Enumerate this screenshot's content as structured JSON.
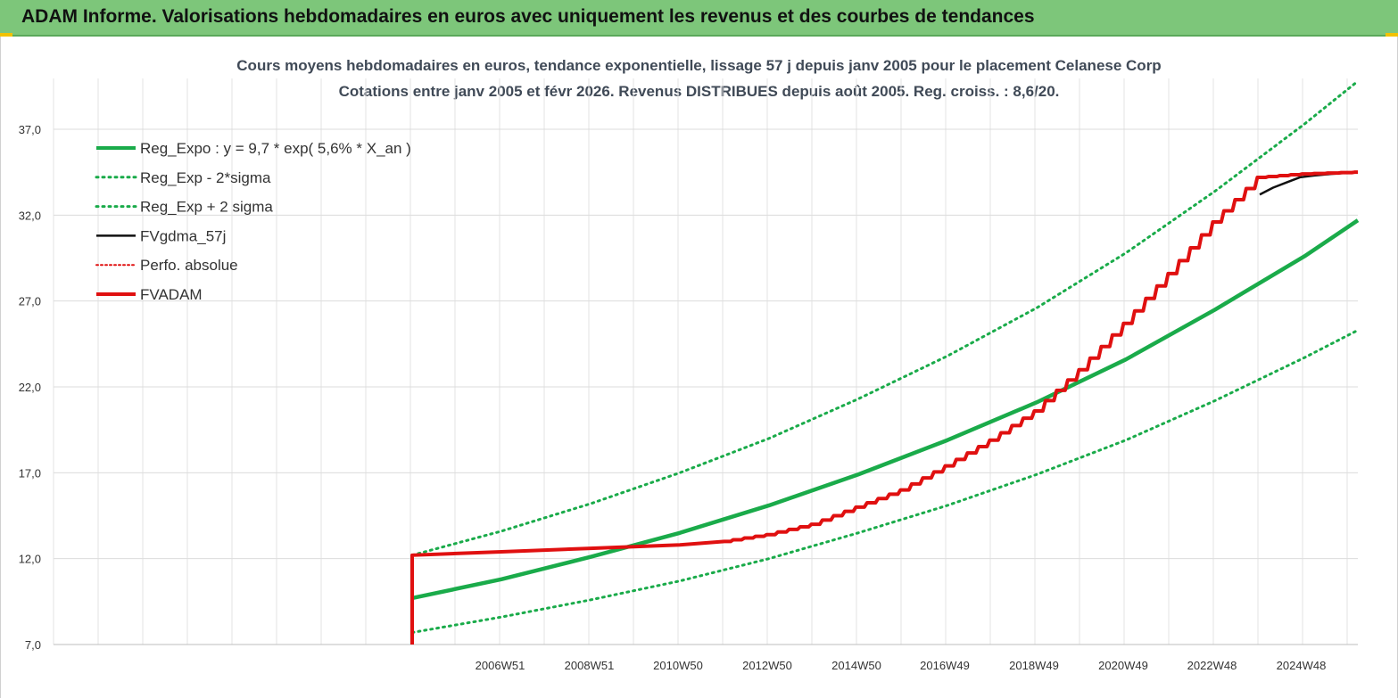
{
  "header": {
    "title": "ADAM Informe. Valorisations hebdomadaires en euros avec uniquement les revenus et des courbes de tendances"
  },
  "chart_data": {
    "type": "line",
    "title": "Cours moyens hebdomadaires en euros, tendance exponentielle, lissage 57 j depuis janv 2005 pour le placement Celanese Corp",
    "subtitle": "Cotations entre janv 2005 et févr 2026. Revenus DISTRIBUES depuis août 2005. Reg. croiss. : 8,6/20.",
    "xlabel": "",
    "ylabel": "",
    "ylim": [
      7,
      37
    ],
    "yticks": [
      "7,0",
      "12,0",
      "17,0",
      "22,0",
      "27,0",
      "32,0",
      "37,0"
    ],
    "ytick_values": [
      7,
      12,
      17,
      22,
      27,
      32,
      37
    ],
    "xlim": [
      2005.0,
      2026.2
    ],
    "xticks": [
      "2006W51",
      "2008W51",
      "2010W50",
      "2012W50",
      "2014W50",
      "2016W49",
      "2018W49",
      "2020W49",
      "2022W48",
      "2024W48"
    ],
    "xtick_values": [
      2006.97,
      2008.97,
      2010.96,
      2012.96,
      2014.96,
      2016.94,
      2018.94,
      2020.94,
      2022.93,
      2024.93
    ],
    "grid": true,
    "legend_position": "top-left",
    "series": [
      {
        "name": "Reg_Expo : y = 9,7 * exp( 5,6% *  X_an )",
        "color": "#1aab4a",
        "style": "solid",
        "x": [
          2005.0,
          2007.0,
          2009.0,
          2011.0,
          2013.0,
          2015.0,
          2017.0,
          2019.0,
          2021.0,
          2023.0,
          2025.0,
          2026.2
        ],
        "y": [
          9.7,
          10.8,
          12.1,
          13.5,
          15.1,
          16.9,
          18.9,
          21.1,
          23.6,
          26.5,
          29.6,
          31.7
        ]
      },
      {
        "name": "Reg_Exp - 2*sigma",
        "color": "#1aab4a",
        "style": "dotted",
        "x": [
          2005.0,
          2007.0,
          2009.0,
          2011.0,
          2013.0,
          2015.0,
          2017.0,
          2019.0,
          2021.0,
          2023.0,
          2025.0,
          2026.2
        ],
        "y": [
          7.7,
          8.6,
          9.6,
          10.7,
          12.0,
          13.5,
          15.1,
          16.9,
          18.9,
          21.2,
          23.7,
          25.3
        ]
      },
      {
        "name": "Reg_Exp + 2 sigma",
        "color": "#1aab4a",
        "style": "dotted",
        "x": [
          2005.0,
          2007.0,
          2009.0,
          2011.0,
          2013.0,
          2015.0,
          2017.0,
          2019.0,
          2021.0,
          2023.0,
          2025.0,
          2026.2
        ],
        "y": [
          12.2,
          13.6,
          15.2,
          17.0,
          19.0,
          21.3,
          23.8,
          26.6,
          29.8,
          33.4,
          37.3,
          39.8
        ]
      },
      {
        "name": "FVgdma_57j",
        "color": "#111111",
        "style": "solid",
        "x": [
          2024.0,
          2024.3,
          2024.6,
          2024.9,
          2025.2,
          2025.6,
          2026.2
        ],
        "y": [
          33.2,
          33.6,
          33.9,
          34.2,
          34.3,
          34.4,
          34.5
        ]
      },
      {
        "name": "Perfo. absolue",
        "color": "#e01010",
        "style": "dotted",
        "x": [],
        "y": []
      },
      {
        "name": "FVADAM",
        "color": "#e01010",
        "style": "solid",
        "x": [
          2005.0,
          2005.0,
          2007.0,
          2009.0,
          2011.0,
          2012.0,
          2013.0,
          2014.0,
          2015.0,
          2016.0,
          2017.0,
          2018.0,
          2019.0,
          2020.0,
          2021.0,
          2022.0,
          2023.0,
          2024.0,
          2025.0,
          2026.2
        ],
        "y": [
          7.0,
          12.2,
          12.4,
          12.6,
          12.8,
          13.0,
          13.4,
          14.0,
          15.0,
          16.0,
          17.4,
          18.9,
          20.6,
          23.0,
          25.7,
          28.6,
          31.6,
          34.2,
          34.4,
          34.5
        ]
      }
    ]
  }
}
